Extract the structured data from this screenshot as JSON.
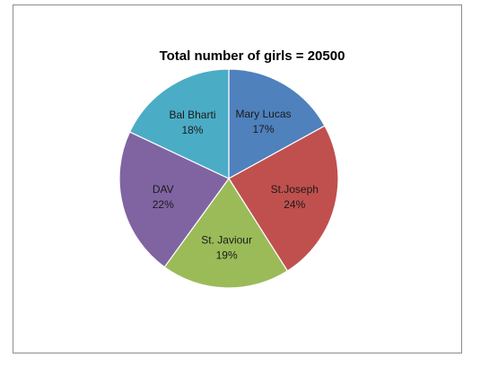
{
  "chart_data": {
    "type": "pie",
    "title": "Total number of girls = 20500",
    "legend": "none",
    "slices": [
      {
        "label": "Mary Lucas",
        "value": 17,
        "value_label": "17%",
        "color": "#4f81bd"
      },
      {
        "label": "St.Joseph",
        "value": 24,
        "value_label": "24%",
        "color": "#c0504d"
      },
      {
        "label": "St. Javiour",
        "value": 19,
        "value_label": "19%",
        "color": "#9bbb59"
      },
      {
        "label": "DAV",
        "value": 22,
        "value_label": "22%",
        "color": "#8064a2"
      },
      {
        "label": "Bal Bharti",
        "value": 18,
        "value_label": "18%",
        "color": "#4bacc6"
      }
    ]
  }
}
